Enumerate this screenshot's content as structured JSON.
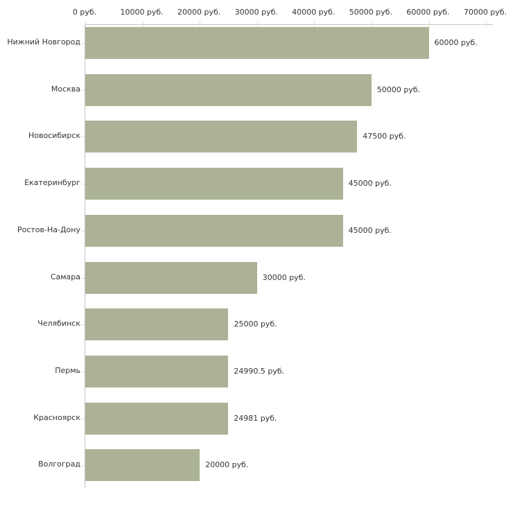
{
  "chart_data": {
    "type": "bar",
    "orientation": "horizontal",
    "title": "",
    "xlabel": "",
    "ylabel": "",
    "grid": "off",
    "legend": "none",
    "xlim": [
      0,
      71200
    ],
    "x_tick_values": [
      0,
      10000,
      20000,
      30000,
      40000,
      50000,
      60000,
      70000
    ],
    "x_ticks": [
      "0 руб.",
      "10000 руб.",
      "20000 руб.",
      "30000 руб.",
      "40000 руб.",
      "50000 руб.",
      "60000 руб.",
      "70000 руб."
    ],
    "categories": [
      "Нижний Новгород",
      "Москва",
      "Новосибирск",
      "Екатеринбург",
      "Ростов-На-Дону",
      "Самара",
      "Челябинск",
      "Пермь",
      "Красноярск",
      "Волгоград"
    ],
    "values": [
      60000,
      50000,
      47500,
      45000,
      45000,
      30000,
      25000,
      24990.5,
      24981,
      20000
    ],
    "value_labels": [
      "60000 руб.",
      "50000 руб.",
      "47500 руб.",
      "45000 руб.",
      "45000 руб.",
      "30000 руб.",
      "25000 руб.",
      "24990.5 руб.",
      "24981 руб.",
      "20000 руб."
    ],
    "bar_color": "#abb296",
    "axis_color": "#c6c6c6",
    "tick_color": "#d9dcc0",
    "text_color": "#333333"
  }
}
